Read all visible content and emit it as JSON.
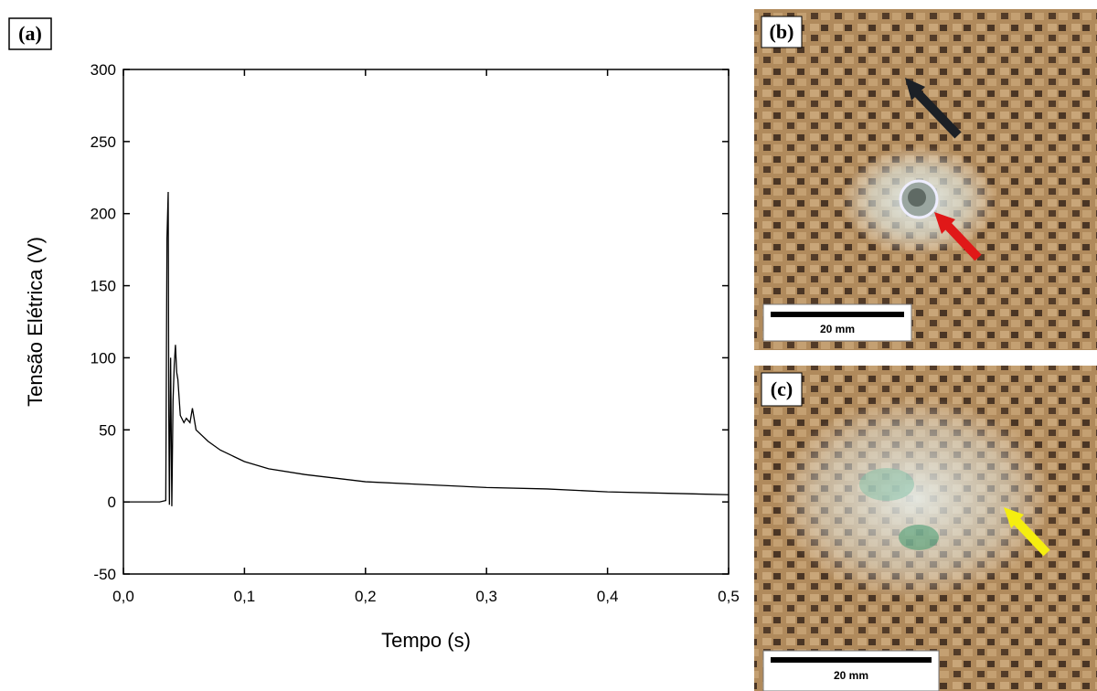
{
  "chart_data": {
    "type": "line",
    "panel_label": "(a)",
    "x_label": "Tempo (s)",
    "y_label": "Tensão Elétrica (V)",
    "xlim": [
      0,
      0.5
    ],
    "ylim": [
      -50,
      300
    ],
    "xticks": [
      {
        "value": 0,
        "label": "0,0"
      },
      {
        "value": 0.1,
        "label": "0,1"
      },
      {
        "value": 0.2,
        "label": "0,2"
      },
      {
        "value": 0.3,
        "label": "0,3"
      },
      {
        "value": 0.4,
        "label": "0,4"
      },
      {
        "value": 0.5,
        "label": "0,5"
      }
    ],
    "yticks": [
      -50,
      0,
      50,
      100,
      150,
      200,
      250,
      300
    ],
    "series": [
      {
        "color": "#000000",
        "x": [
          0,
          0.03,
          0.035,
          0.036,
          0.037,
          0.0375,
          0.038,
          0.039,
          0.04,
          0.041,
          0.042,
          0.043,
          0.044,
          0.045,
          0.047,
          0.05,
          0.052,
          0.055,
          0.057,
          0.06,
          0.07,
          0.08,
          0.1,
          0.12,
          0.15,
          0.2,
          0.25,
          0.3,
          0.35,
          0.4,
          0.45,
          0.5
        ],
        "values": [
          0,
          0,
          1,
          183,
          215,
          60,
          -2,
          100,
          -3,
          70,
          95,
          109,
          90,
          85,
          60,
          55,
          58,
          55,
          65,
          50,
          42,
          36,
          28,
          23,
          19,
          14,
          12,
          10,
          9,
          7,
          6,
          5
        ]
      }
    ]
  },
  "photos": [
    {
      "label": "(b)",
      "scale_bar": "20 mm"
    },
    {
      "label": "(c)",
      "scale_bar": "20 mm"
    }
  ]
}
